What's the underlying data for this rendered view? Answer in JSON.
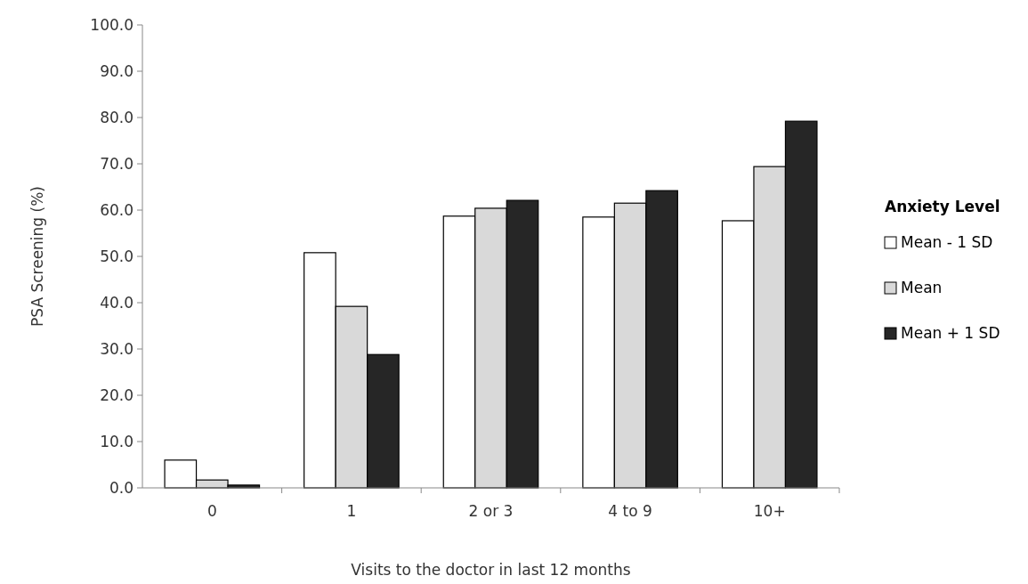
{
  "chart_data": {
    "type": "bar",
    "xlabel": "Visits to the doctor in last 12 months",
    "ylabel": "PSA Screening (%)",
    "legend_title": "Anxiety Level",
    "categories": [
      "0",
      "1",
      "2 or 3",
      "4 to 9",
      "10+"
    ],
    "series": [
      {
        "name": "Mean - 1 SD",
        "color": "#ffffff",
        "values": [
          6.0,
          50.8,
          58.7,
          58.5,
          57.7
        ]
      },
      {
        "name": "Mean",
        "color": "#d9d9d9",
        "values": [
          1.7,
          39.2,
          60.4,
          61.5,
          69.4
        ]
      },
      {
        "name": "Mean + 1 SD",
        "color": "#262626",
        "values": [
          0.6,
          28.8,
          62.1,
          64.2,
          79.2
        ]
      }
    ],
    "ylim": [
      0,
      100
    ],
    "yticks": [
      {
        "value": 0,
        "label": "0.0"
      },
      {
        "value": 10,
        "label": "10.0"
      },
      {
        "value": 20,
        "label": "20.0"
      },
      {
        "value": 30,
        "label": "30.0"
      },
      {
        "value": 40,
        "label": "40.0"
      },
      {
        "value": 50,
        "label": "50.0"
      },
      {
        "value": 60,
        "label": "60.0"
      },
      {
        "value": 70,
        "label": "70.0"
      },
      {
        "value": 80,
        "label": "80.0"
      },
      {
        "value": 90,
        "label": "90.0"
      },
      {
        "value": 100,
        "label": "100.0"
      }
    ],
    "grid": false,
    "legend": "right"
  }
}
